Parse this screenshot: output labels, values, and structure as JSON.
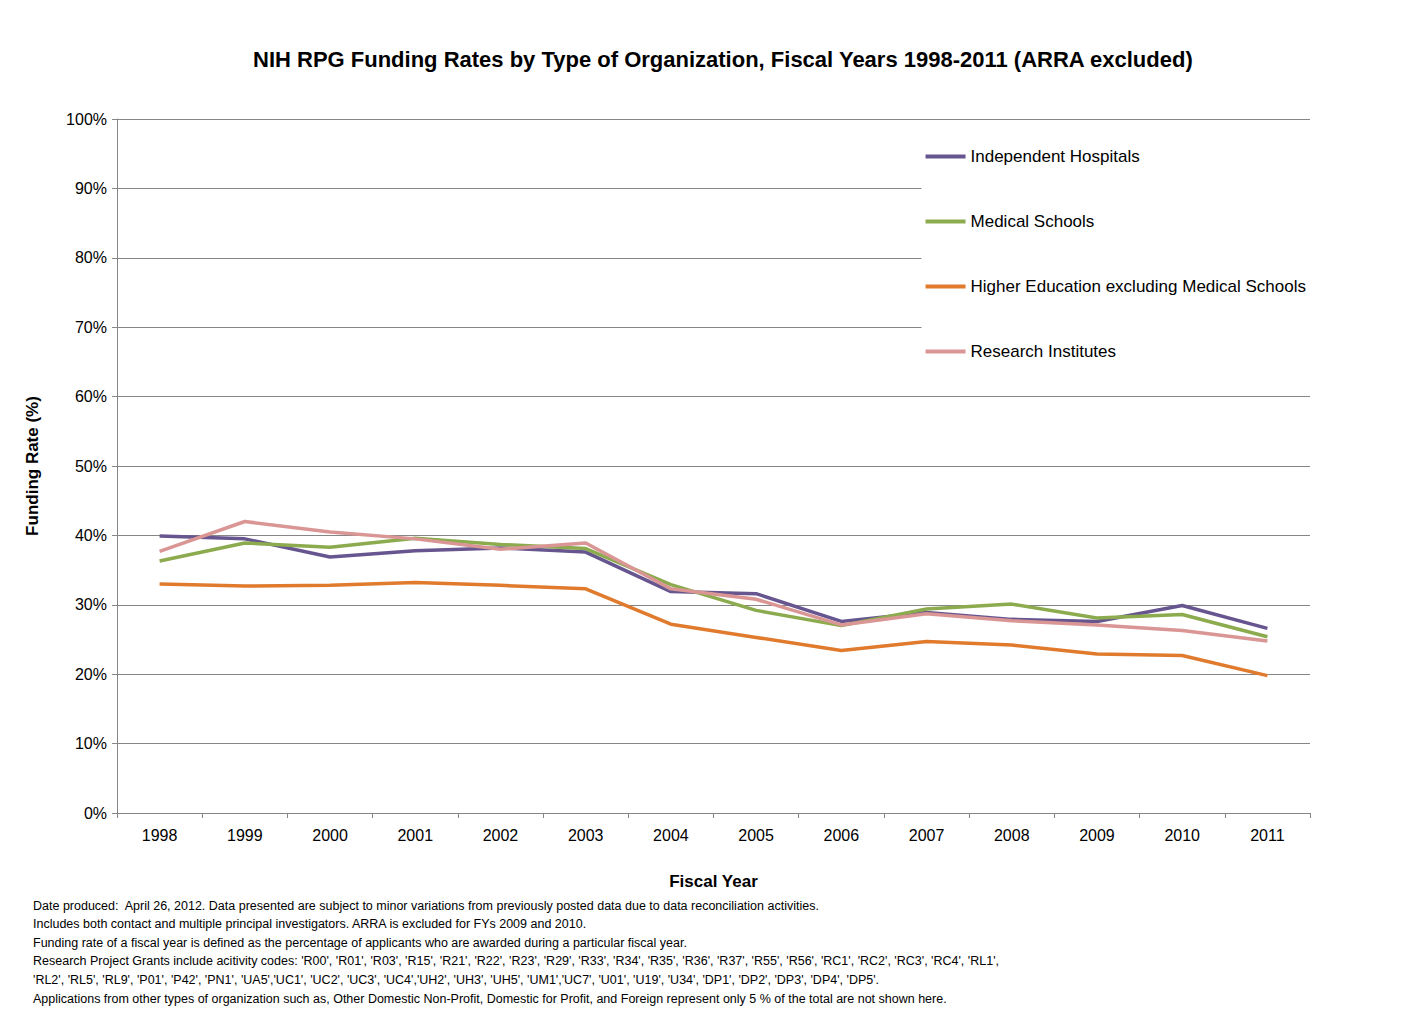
{
  "chart_data": {
    "type": "line",
    "title": "NIH RPG Funding Rates by Type of Organization, Fiscal Years 1998-2011 (ARRA excluded)",
    "x_label": "Fiscal Year",
    "y_label": "Funding Rate (%)",
    "categories": [
      "1998",
      "1999",
      "2000",
      "2001",
      "2002",
      "2003",
      "2004",
      "2005",
      "2006",
      "2007",
      "2008",
      "2009",
      "2010",
      "2011"
    ],
    "series": [
      {
        "name": "Independent Hospitals",
        "color": "#66558f",
        "values": [
          39.9,
          39.5,
          36.9,
          37.8,
          38.2,
          37.6,
          31.9,
          31.6,
          27.6,
          28.9,
          27.9,
          27.6,
          29.9,
          26.6
        ]
      },
      {
        "name": "Medical Schools",
        "color": "#8bab4e",
        "values": [
          36.3,
          38.9,
          38.3,
          39.6,
          38.7,
          38.1,
          32.9,
          29.2,
          27.0,
          29.4,
          30.1,
          28.1,
          28.6,
          25.4
        ]
      },
      {
        "name": "Higher Education excluding Medical Schools",
        "color": "#e07b2e",
        "values": [
          33.0,
          32.7,
          32.8,
          33.2,
          32.8,
          32.3,
          27.2,
          25.3,
          23.4,
          24.7,
          24.2,
          22.9,
          22.7,
          19.8
        ]
      },
      {
        "name": "Research Institutes",
        "color": "#da9694",
        "values": [
          37.7,
          42.0,
          40.5,
          39.5,
          38.0,
          38.9,
          32.3,
          30.8,
          27.1,
          28.7,
          27.7,
          27.1,
          26.3,
          24.8
        ]
      }
    ],
    "ylim": [
      0,
      100
    ],
    "yticks": [
      {
        "value": 0,
        "label": "0%"
      },
      {
        "value": 10,
        "label": "10%"
      },
      {
        "value": 20,
        "label": "20%"
      },
      {
        "value": 30,
        "label": "30%"
      },
      {
        "value": 40,
        "label": "40%"
      },
      {
        "value": 50,
        "label": "50%"
      },
      {
        "value": 60,
        "label": "60%"
      },
      {
        "value": 70,
        "label": "70%"
      },
      {
        "value": 80,
        "label": "80%"
      },
      {
        "value": 90,
        "label": "90%"
      },
      {
        "value": 100,
        "label": "100%"
      }
    ],
    "grid": true,
    "legend": "top-right",
    "footnotes": [
      "Date produced:  April 26, 2012. Data presented are subject to minor variations from previously posted data due to data reconciliation activities.",
      "Includes both contact and multiple principal investigators. ARRA is excluded for FYs 2009 and 2010.",
      "Funding rate of a fiscal year is defined as the percentage of applicants who are awarded during a particular fiscal year.",
      "Research Project Grants include acitivity codes: 'R00', 'R01', 'R03', 'R15', 'R21', 'R22', 'R23', 'R29', 'R33', 'R34', 'R35', 'R36', 'R37', 'R55', 'R56', 'RC1', 'RC2', 'RC3', 'RC4', 'RL1',",
      "'RL2', 'RL5', 'RL9', 'P01', 'P42', 'PN1', 'UA5','UC1', 'UC2', 'UC3', 'UC4','UH2', 'UH3', 'UH5', 'UM1','UC7', 'U01', 'U19', 'U34', 'DP1', 'DP2', 'DP3', 'DP4', 'DP5'.",
      "Applications from other types of organization such as, Other Domestic Non-Profit, Domestic for Profit, and Foreign represent only 5 % of the total are not shown here."
    ]
  }
}
